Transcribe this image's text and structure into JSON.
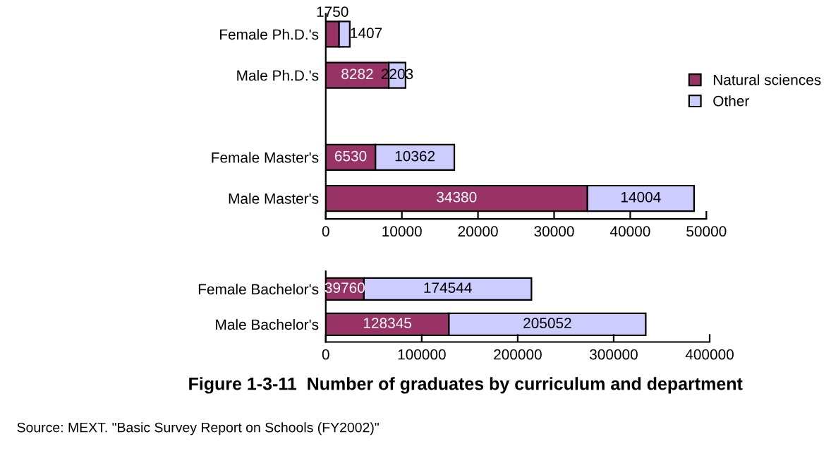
{
  "chart_data": [
    {
      "type": "bar",
      "orientation": "horizontal",
      "stacked": true,
      "categories": [
        "Female Ph.D.'s",
        "Male Ph.D.'s",
        null,
        "Female Master's",
        "Male Master's"
      ],
      "series": [
        {
          "name": "Natural sciences",
          "color": "#993366",
          "values": [
            1750,
            8282,
            null,
            6530,
            34380
          ]
        },
        {
          "name": "Other",
          "color": "#ccccff",
          "values": [
            1407,
            2203,
            null,
            10362,
            14004
          ]
        }
      ],
      "xlim": [
        0,
        50000
      ],
      "xticks": [
        0,
        10000,
        20000,
        30000,
        40000,
        50000
      ],
      "data_labels": true,
      "legend": "right",
      "grid": false
    },
    {
      "type": "bar",
      "orientation": "horizontal",
      "stacked": true,
      "categories": [
        "Female Bachelor's",
        "Male Bachelor's"
      ],
      "series": [
        {
          "color": "#993366",
          "values": [
            39760,
            128345
          ]
        },
        {
          "color": "#ccccff",
          "values": [
            174544,
            205052
          ]
        }
      ],
      "xlim": [
        0,
        400000
      ],
      "xticks": [
        0,
        100000,
        200000,
        300000,
        400000
      ],
      "data_labels": true,
      "grid": false,
      "title": "Figure 1-3-11  Number of graduates by curriculum and department",
      "annotations": [
        "Source: MEXT. \"Basic Survey Report on Schools (FY2002)\""
      ]
    }
  ]
}
